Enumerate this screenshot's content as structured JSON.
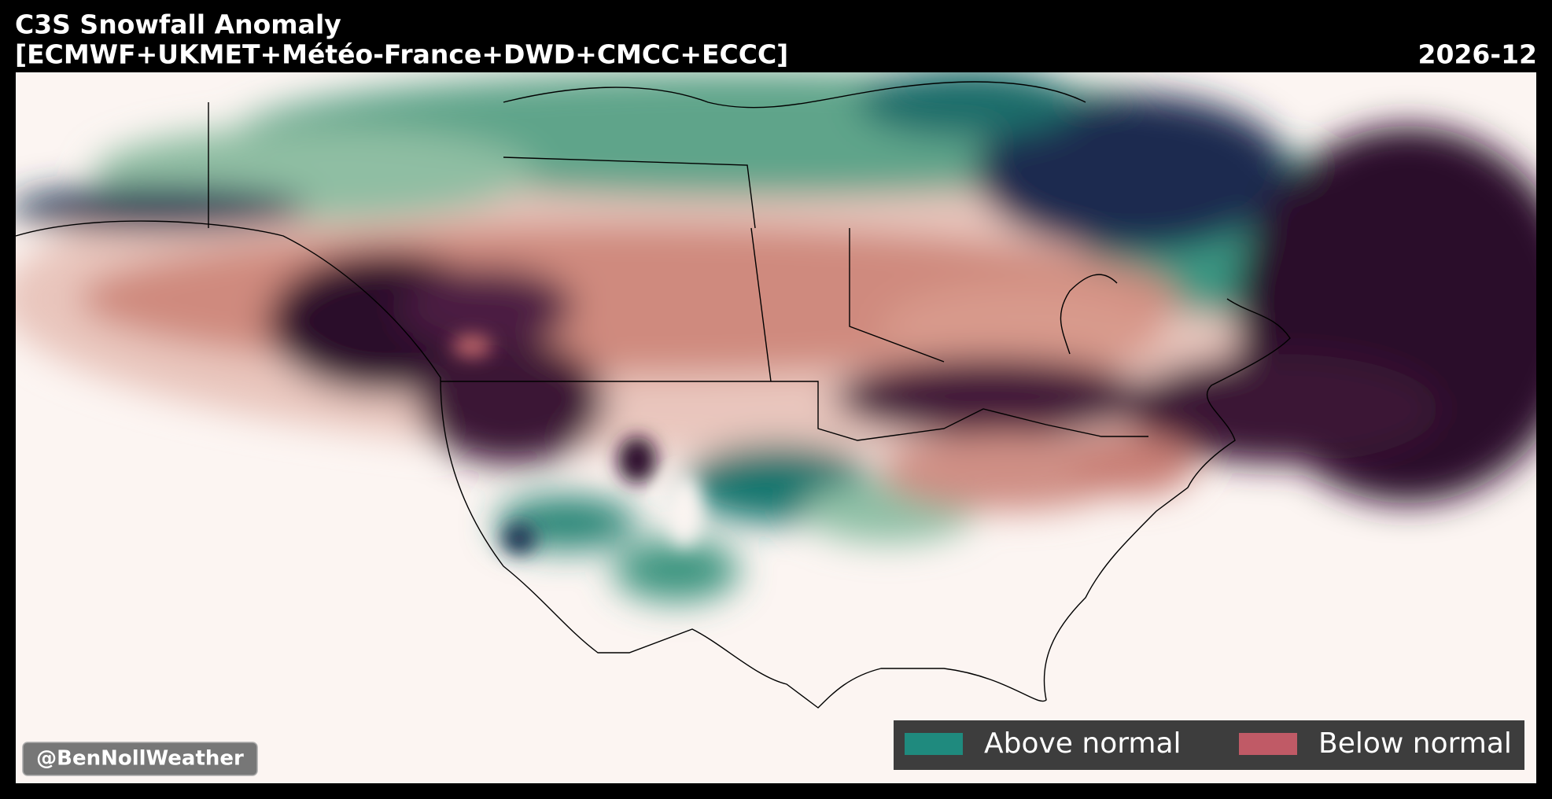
{
  "header": {
    "title": "C3S Snowfall Anomaly",
    "subtitle": "[ECMWF+UKMET+Météo-France+DWD+CMCC+ECCC]",
    "date": "2026-12"
  },
  "legend": {
    "items": [
      {
        "label": "Above normal",
        "color": "#1f8a7e"
      },
      {
        "label": "Below normal",
        "color": "#c05a66"
      }
    ]
  },
  "watermark": "@BenNollWeather"
}
